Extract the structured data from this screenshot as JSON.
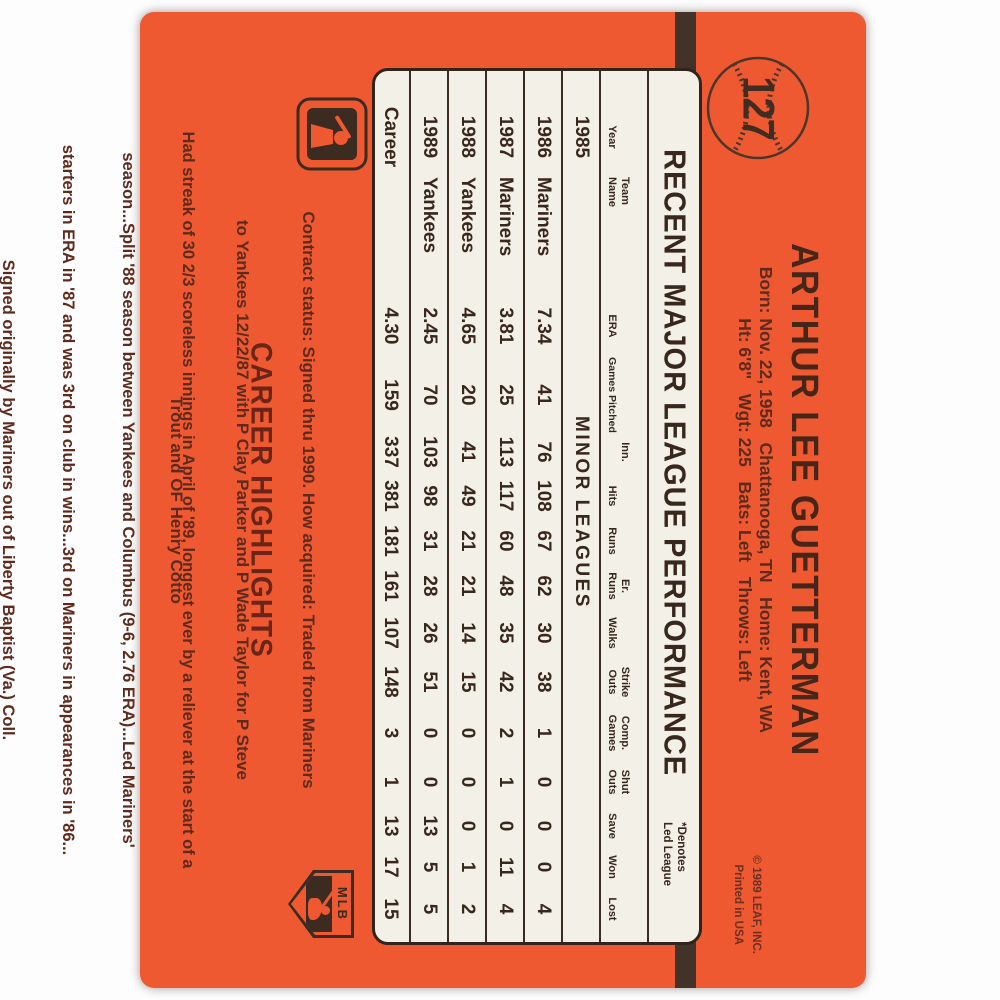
{
  "card": {
    "number": "127",
    "player_name": "ARTHUR LEE GUETTERMAN",
    "bio_line1": "Born: Nov. 22, 1958   Chattanooga, TN   Home: Kent, WA",
    "bio_line2": "Ht: 6'8\"   Wgt: 225   Bats: Left   Throws: Left",
    "copyright_line1": "© 1989 LEAF, INC.",
    "copyright_line2": "Printed in USA",
    "stats": {
      "title": "RECENT MAJOR LEAGUE PERFORMANCE",
      "denotes_line1": "*Denotes",
      "denotes_line2": "Led League",
      "columns": [
        {
          "top": "",
          "bottom": "Year"
        },
        {
          "top": "Team",
          "bottom": "Name"
        },
        {
          "top": "",
          "bottom": "ERA"
        },
        {
          "top": "",
          "bottom": "Games Pitched"
        },
        {
          "top": "Inn.",
          "bottom": ""
        },
        {
          "top": "",
          "bottom": "Hits"
        },
        {
          "top": "",
          "bottom": "Runs"
        },
        {
          "top": "Er.",
          "bottom": "Runs"
        },
        {
          "top": "",
          "bottom": "Walks"
        },
        {
          "top": "Strike",
          "bottom": "Outs"
        },
        {
          "top": "Comp.",
          "bottom": "Games"
        },
        {
          "top": "Shut",
          "bottom": "Outs"
        },
        {
          "top": "",
          "bottom": "Save"
        },
        {
          "top": "",
          "bottom": "Won"
        },
        {
          "top": "",
          "bottom": "Lost"
        }
      ],
      "rows": [
        {
          "cells": [
            "1985"
          ],
          "minor_league_note": "MINOR LEAGUES"
        },
        {
          "cells": [
            "1986",
            "Mariners",
            "7.34",
            "41",
            "76",
            "108",
            "67",
            "62",
            "30",
            "38",
            "1",
            "0",
            "0",
            "0",
            "4"
          ]
        },
        {
          "cells": [
            "1987",
            "Mariners",
            "3.81",
            "25",
            "113",
            "117",
            "60",
            "48",
            "35",
            "42",
            "2",
            "1",
            "0",
            "11",
            "4"
          ]
        },
        {
          "cells": [
            "1988",
            "Yankees",
            "4.65",
            "20",
            "41",
            "49",
            "21",
            "21",
            "14",
            "15",
            "0",
            "0",
            "0",
            "1",
            "2"
          ]
        },
        {
          "cells": [
            "1989",
            "Yankees",
            "2.45",
            "70",
            "103",
            "98",
            "31",
            "28",
            "26",
            "51",
            "0",
            "0",
            "13",
            "5",
            "5"
          ]
        },
        {
          "cells": [
            "Career",
            "",
            "4.30",
            "159",
            "337",
            "381",
            "181",
            "161",
            "107",
            "148",
            "3",
            "1",
            "13",
            "17",
            "15"
          ]
        }
      ]
    },
    "contract": [
      "Contract status: Signed thru 1990. How acquired: Traded from Mariners",
      "to Yankees 12/22/87 with P Clay Parker and P Wade Taylor for P Steve",
      "Trout and OF Henry Cotto"
    ],
    "career_highlights": {
      "heading": "CAREER HIGHLIGHTS",
      "lines": [
        "Had streak of 30 2/3 scoreless innings in April of '89, longest ever by a reliever at the start of a",
        "season...Split '88 season between Yankees and Columbus (9-6, 2.76 ERA)...Led Mariners'",
        "starters in ERA in '87 and was 3rd on club in wins...3rd on Mariners in appearances in '86...",
        "Signed originally by Mariners out of Liberty Baptist (Va.) Coll."
      ]
    },
    "logos": {
      "mlbpa_text": "MLB"
    },
    "colors": {
      "card_orange": "#ee5931",
      "panel_cream": "#f3f0e7",
      "ink_dark": "#38271d",
      "text_brown": "#5e2a1d",
      "heading_maroon": "#6b2518"
    }
  }
}
